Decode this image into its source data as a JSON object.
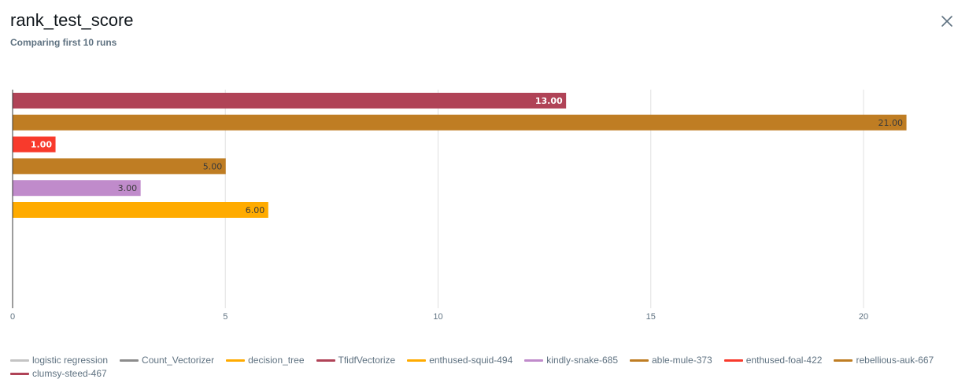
{
  "header": {
    "title": "rank_test_score",
    "subtitle": "Comparing first 10 runs",
    "close_icon": "close-icon"
  },
  "chart_data": {
    "type": "bar",
    "orientation": "horizontal",
    "title": "rank_test_score",
    "xlabel": "",
    "ylabel": "",
    "xlim": [
      0,
      21.8
    ],
    "x_ticks": [
      0,
      5,
      10,
      15,
      20
    ],
    "grid": true,
    "legend_position": "bottom",
    "bars": [
      {
        "run": "clumsy-steed-467",
        "value": 13,
        "label": "13.00",
        "color": "#b04357",
        "label_color": "#ffffff"
      },
      {
        "run": "rebellious-auk-667",
        "value": 21,
        "label": "21.00",
        "color": "#bf7d23",
        "label_color": "#3a3a3a"
      },
      {
        "run": "enthused-foal-422",
        "value": 1,
        "label": "1.00",
        "color": "#f83a2c",
        "label_color": "#ffffff"
      },
      {
        "run": "able-mule-373",
        "value": 5,
        "label": "5.00",
        "color": "#bf7d23",
        "label_color": "#3a3a3a"
      },
      {
        "run": "kindly-snake-685",
        "value": 3,
        "label": "3.00",
        "color": "#c08bcb",
        "label_color": "#3a3a3a"
      },
      {
        "run": "enthused-squid-494",
        "value": 6,
        "label": "6.00",
        "color": "#ffab00",
        "label_color": "#3a3a3a"
      },
      {
        "run": "TfidfVectorize",
        "value": null,
        "label": "",
        "color": "#b04357",
        "label_color": "#3a3a3a"
      },
      {
        "run": "decision_tree",
        "value": null,
        "label": "",
        "color": "#ffab00",
        "label_color": "#3a3a3a"
      },
      {
        "run": "Count_Vectorizer",
        "value": null,
        "label": "",
        "color": "#8c8c8c",
        "label_color": "#3a3a3a"
      },
      {
        "run": "logistic regression",
        "value": null,
        "label": "",
        "color": "#c4c4c4",
        "label_color": "#3a3a3a"
      }
    ],
    "legend": [
      {
        "name": "logistic regression",
        "color": "#c4c4c4"
      },
      {
        "name": "Count_Vectorizer",
        "color": "#8c8c8c"
      },
      {
        "name": "decision_tree",
        "color": "#ffab00"
      },
      {
        "name": "TfidfVectorize",
        "color": "#b04357"
      },
      {
        "name": "enthused-squid-494",
        "color": "#ffab00"
      },
      {
        "name": "kindly-snake-685",
        "color": "#c08bcb"
      },
      {
        "name": "able-mule-373",
        "color": "#bf7d23"
      },
      {
        "name": "enthused-foal-422",
        "color": "#f83a2c"
      },
      {
        "name": "rebellious-auk-667",
        "color": "#bf7d23"
      },
      {
        "name": "clumsy-steed-467",
        "color": "#b04357"
      }
    ]
  }
}
